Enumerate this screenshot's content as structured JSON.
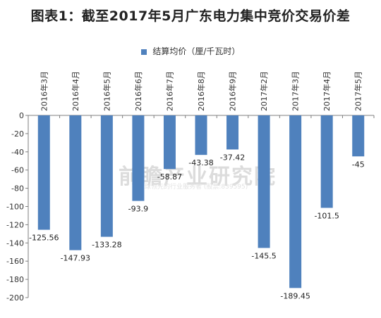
{
  "title": "图表1：截至2017年5月广东电力集中竞价交易价差",
  "watermark": {
    "main": "前瞻产业研究院",
    "sub": "全球领先的行业服务者 (股票:839595)"
  },
  "colors": {
    "bar": "#4F81BD",
    "axis": "#7f7f7f",
    "text": "#333333"
  },
  "chart_data": {
    "type": "bar",
    "title": "图表1：截至2017年5月广东电力集中竞价交易价差",
    "xlabel": "",
    "ylabel": "",
    "ylim": [
      -200,
      0
    ],
    "yticks": [
      0,
      -20,
      -40,
      -60,
      -80,
      -100,
      -120,
      -140,
      -160,
      -180,
      -200
    ],
    "grid": false,
    "legend": "top-center",
    "categories": [
      "2016年3月",
      "2016年4月",
      "2016年5月",
      "2016年6月",
      "2016年7月",
      "2016年8月",
      "2016年9月",
      "2017年2月",
      "2017年3月",
      "2017年4月",
      "2017年5月"
    ],
    "series": [
      {
        "name": "结算均价（厘/千瓦时）",
        "values": [
          -125.56,
          -147.93,
          -133.28,
          -93.9,
          -58.87,
          -43.38,
          -37.42,
          -145.5,
          -189.45,
          -101.5,
          -45
        ],
        "labels": [
          "-125.56",
          "-147.93",
          "-133.28",
          "-93.9",
          "-58.87",
          "-43.38",
          "-37.42",
          "-145.5",
          "-189.45",
          "-101.5",
          "-45"
        ]
      }
    ]
  }
}
